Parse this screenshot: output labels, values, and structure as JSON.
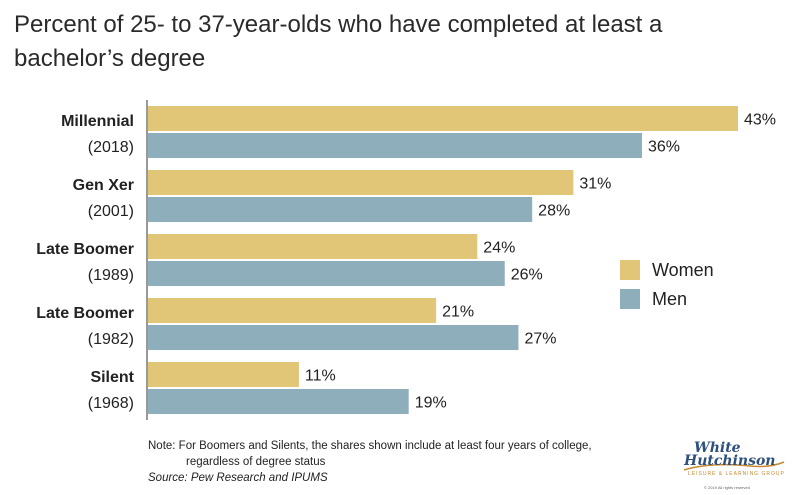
{
  "title": "Percent of 25- to 37-year-olds who have completed at least a bachelor’s degree",
  "note_line1": "Note: For Boomers and Silents, the shares shown include at least four years of college,",
  "note_line2": "regardless of degree status",
  "source": "Source: Pew Research and IPUMS",
  "logo": {
    "line1": "White",
    "line2": "Hutchinson",
    "tagline": "LEISURE & LEARNING GROUP",
    "copyright": "© 2019 All rights reserved"
  },
  "colors": {
    "women": "#e2c677",
    "men": "#8faebb"
  },
  "chart_data": {
    "type": "bar",
    "orientation": "horizontal",
    "title": "Percent of 25- to 37-year-olds who have completed at least a bachelor’s degree",
    "categories": [
      {
        "name": "Millennial",
        "year": "(2018)"
      },
      {
        "name": "Gen Xer",
        "year": "(2001)"
      },
      {
        "name": "Late Boomer",
        "year": "(1989)"
      },
      {
        "name": "Late Boomer",
        "year": "(1982)"
      },
      {
        "name": "Silent",
        "year": "(1968)"
      }
    ],
    "series": [
      {
        "name": "Women",
        "values": [
          43,
          31,
          24,
          21,
          11
        ]
      },
      {
        "name": "Men",
        "values": [
          36,
          28,
          26,
          27,
          19
        ]
      }
    ],
    "value_suffix": "%",
    "xlim": [
      0,
      43
    ],
    "legend_position": "right"
  }
}
